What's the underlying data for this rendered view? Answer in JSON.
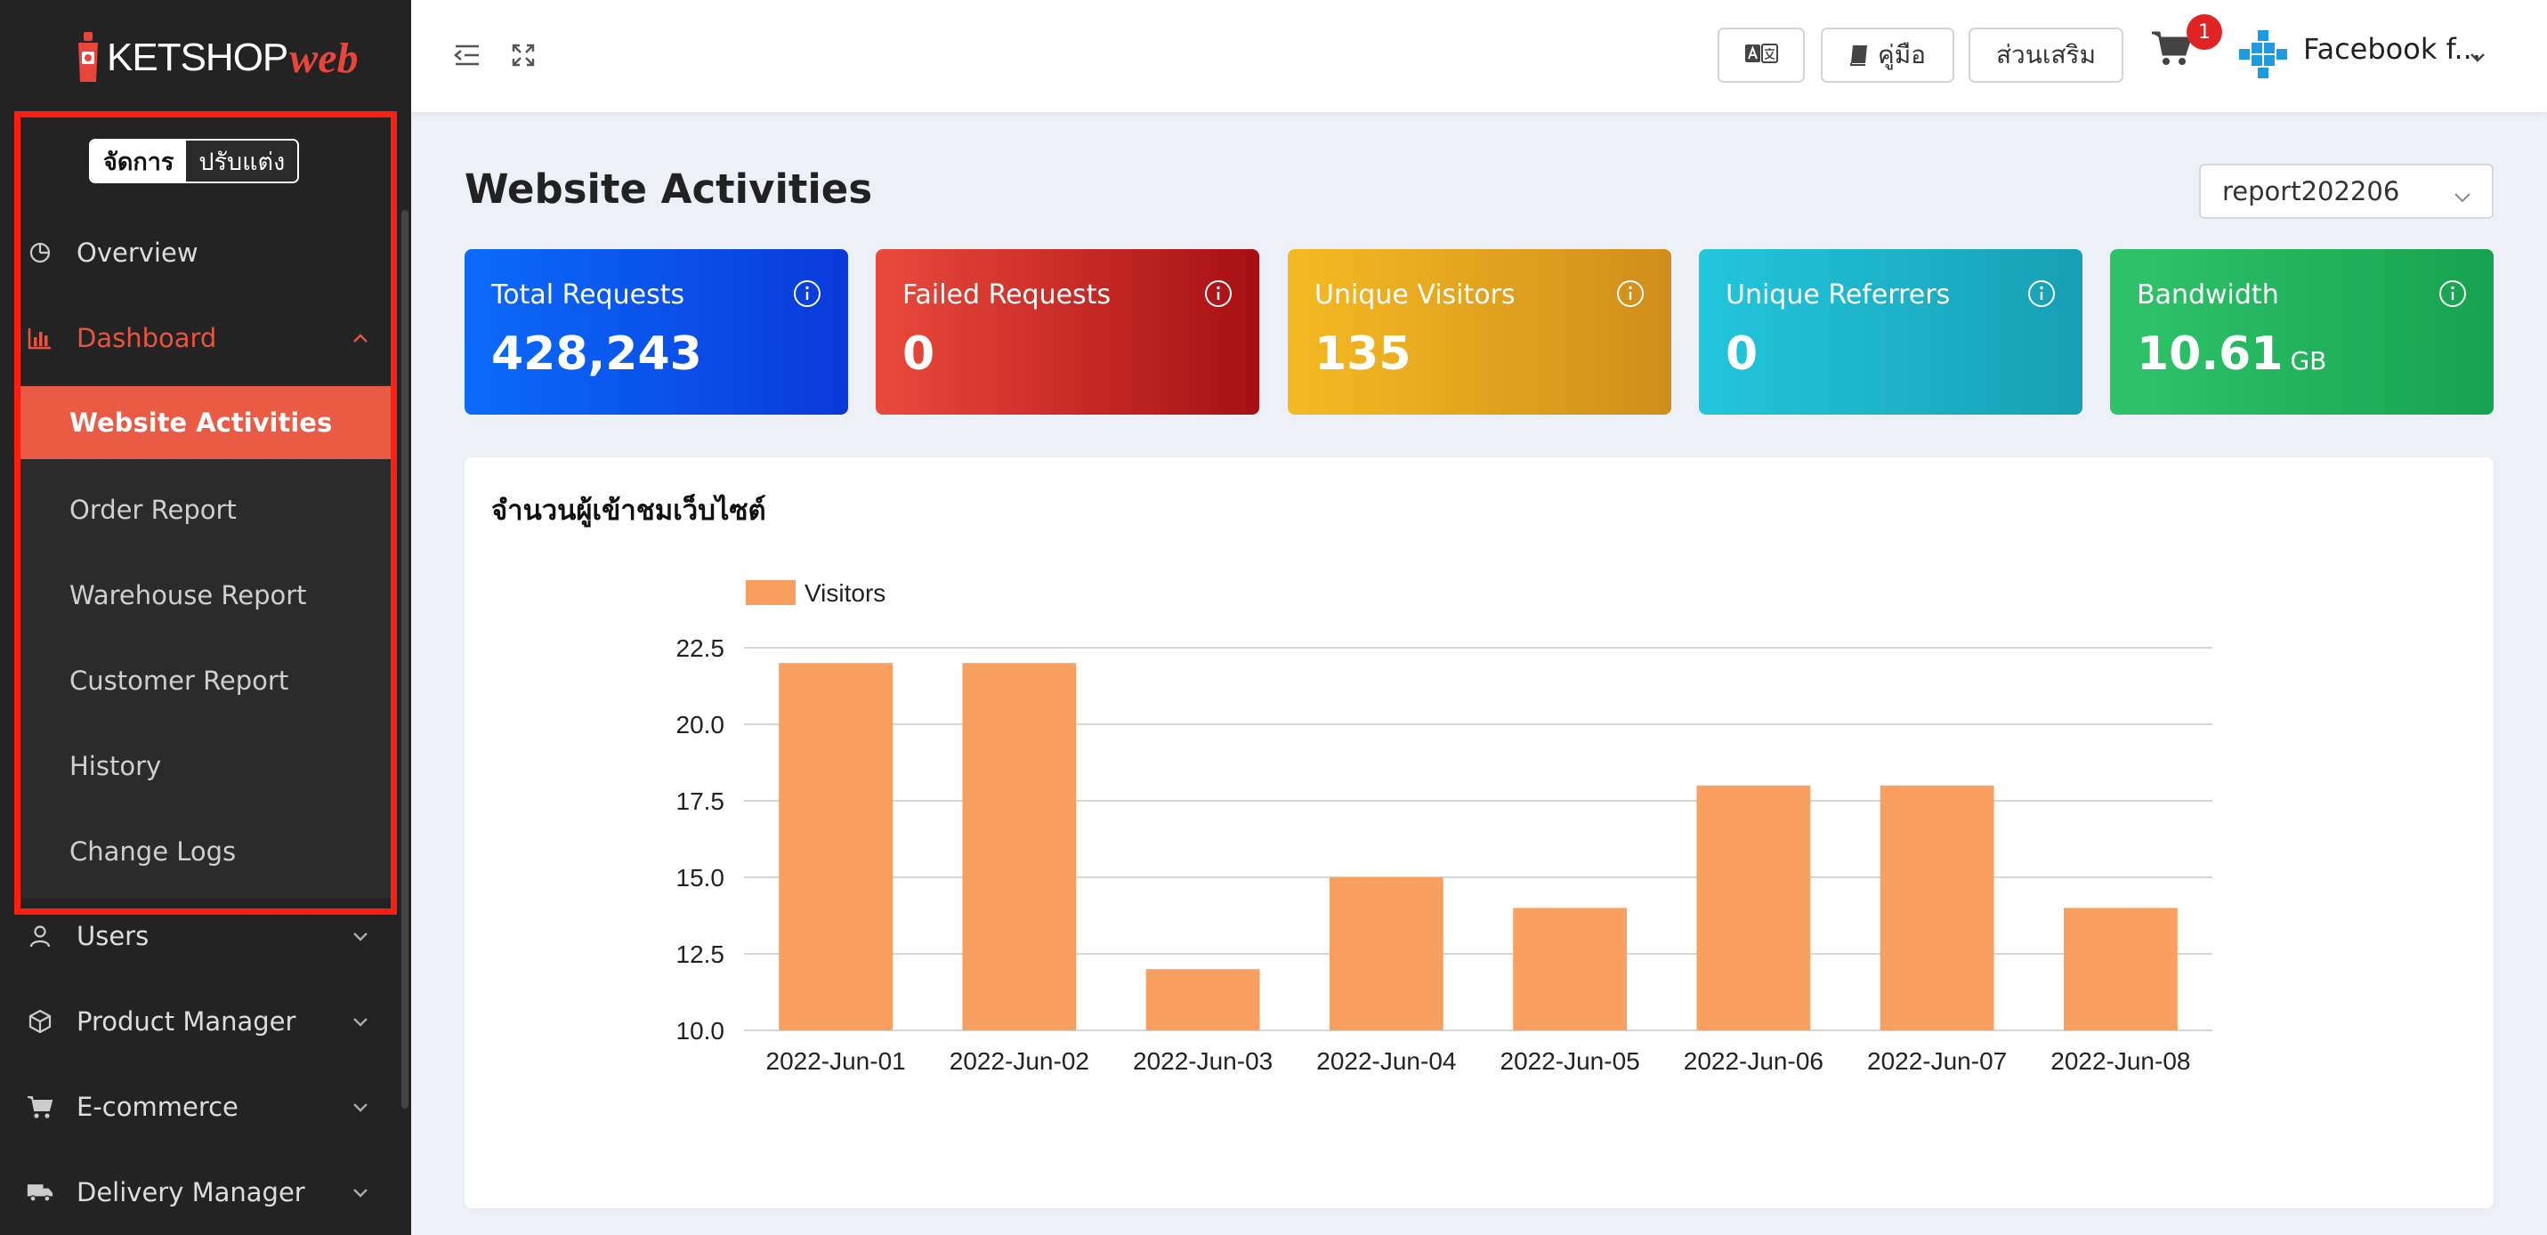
{
  "brand": {
    "name": "KETSHOP",
    "suffix": "web"
  },
  "mode_toggle": {
    "active": "จัดการ",
    "inactive": "ปรับแต่ง"
  },
  "sidebar": {
    "items": [
      {
        "label": "Overview",
        "icon": "pie-chart-icon"
      },
      {
        "label": "Dashboard",
        "icon": "bar-chart-icon",
        "expanded": true
      },
      {
        "label": "Users",
        "icon": "user-icon"
      },
      {
        "label": "Product Manager",
        "icon": "box-icon"
      },
      {
        "label": "E-commerce",
        "icon": "cart-icon"
      },
      {
        "label": "Delivery Manager",
        "icon": "truck-icon"
      }
    ],
    "dashboard_sub": [
      "Website Activities",
      "Order Report",
      "Warehouse Report",
      "Customer Report",
      "History",
      "Change Logs"
    ]
  },
  "header": {
    "manual_label": "คู่มือ",
    "addons_label": "ส่วนเสริม",
    "cart_count": "1",
    "user_name": "Facebook f..."
  },
  "page": {
    "title": "Website Activities",
    "report_select": "report202206"
  },
  "stats": [
    {
      "title": "Total Requests",
      "value": "428,243",
      "unit": ""
    },
    {
      "title": "Failed Requests",
      "value": "0",
      "unit": ""
    },
    {
      "title": "Unique Visitors",
      "value": "135",
      "unit": ""
    },
    {
      "title": "Unique Referrers",
      "value": "0",
      "unit": ""
    },
    {
      "title": "Bandwidth",
      "value": "10.61",
      "unit": "GB"
    }
  ],
  "colors": {
    "accent": "#e8553f",
    "bar": "#f9a061",
    "card_blue": "#0a4df0",
    "card_red": "#c7261f",
    "card_yellow": "#e3a722",
    "card_cyan": "#1fb9d2",
    "card_green": "#22b058"
  },
  "chart_panel": {
    "title": "จำนวนผู้เข้าชมเว็บไซต์"
  },
  "chart_data": {
    "type": "bar",
    "categories": [
      "2022-Jun-01",
      "2022-Jun-02",
      "2022-Jun-03",
      "2022-Jun-04",
      "2022-Jun-05",
      "2022-Jun-06",
      "2022-Jun-07",
      "2022-Jun-08"
    ],
    "series": [
      {
        "name": "Visitors",
        "values": [
          22,
          22,
          12,
          15,
          14,
          18,
          18,
          14
        ]
      }
    ],
    "ylim": [
      10,
      22.5
    ],
    "yticks": [
      "10.0",
      "12.5",
      "15.0",
      "17.5",
      "20.0",
      "22.5"
    ],
    "grid": true,
    "legend": "top-left"
  }
}
